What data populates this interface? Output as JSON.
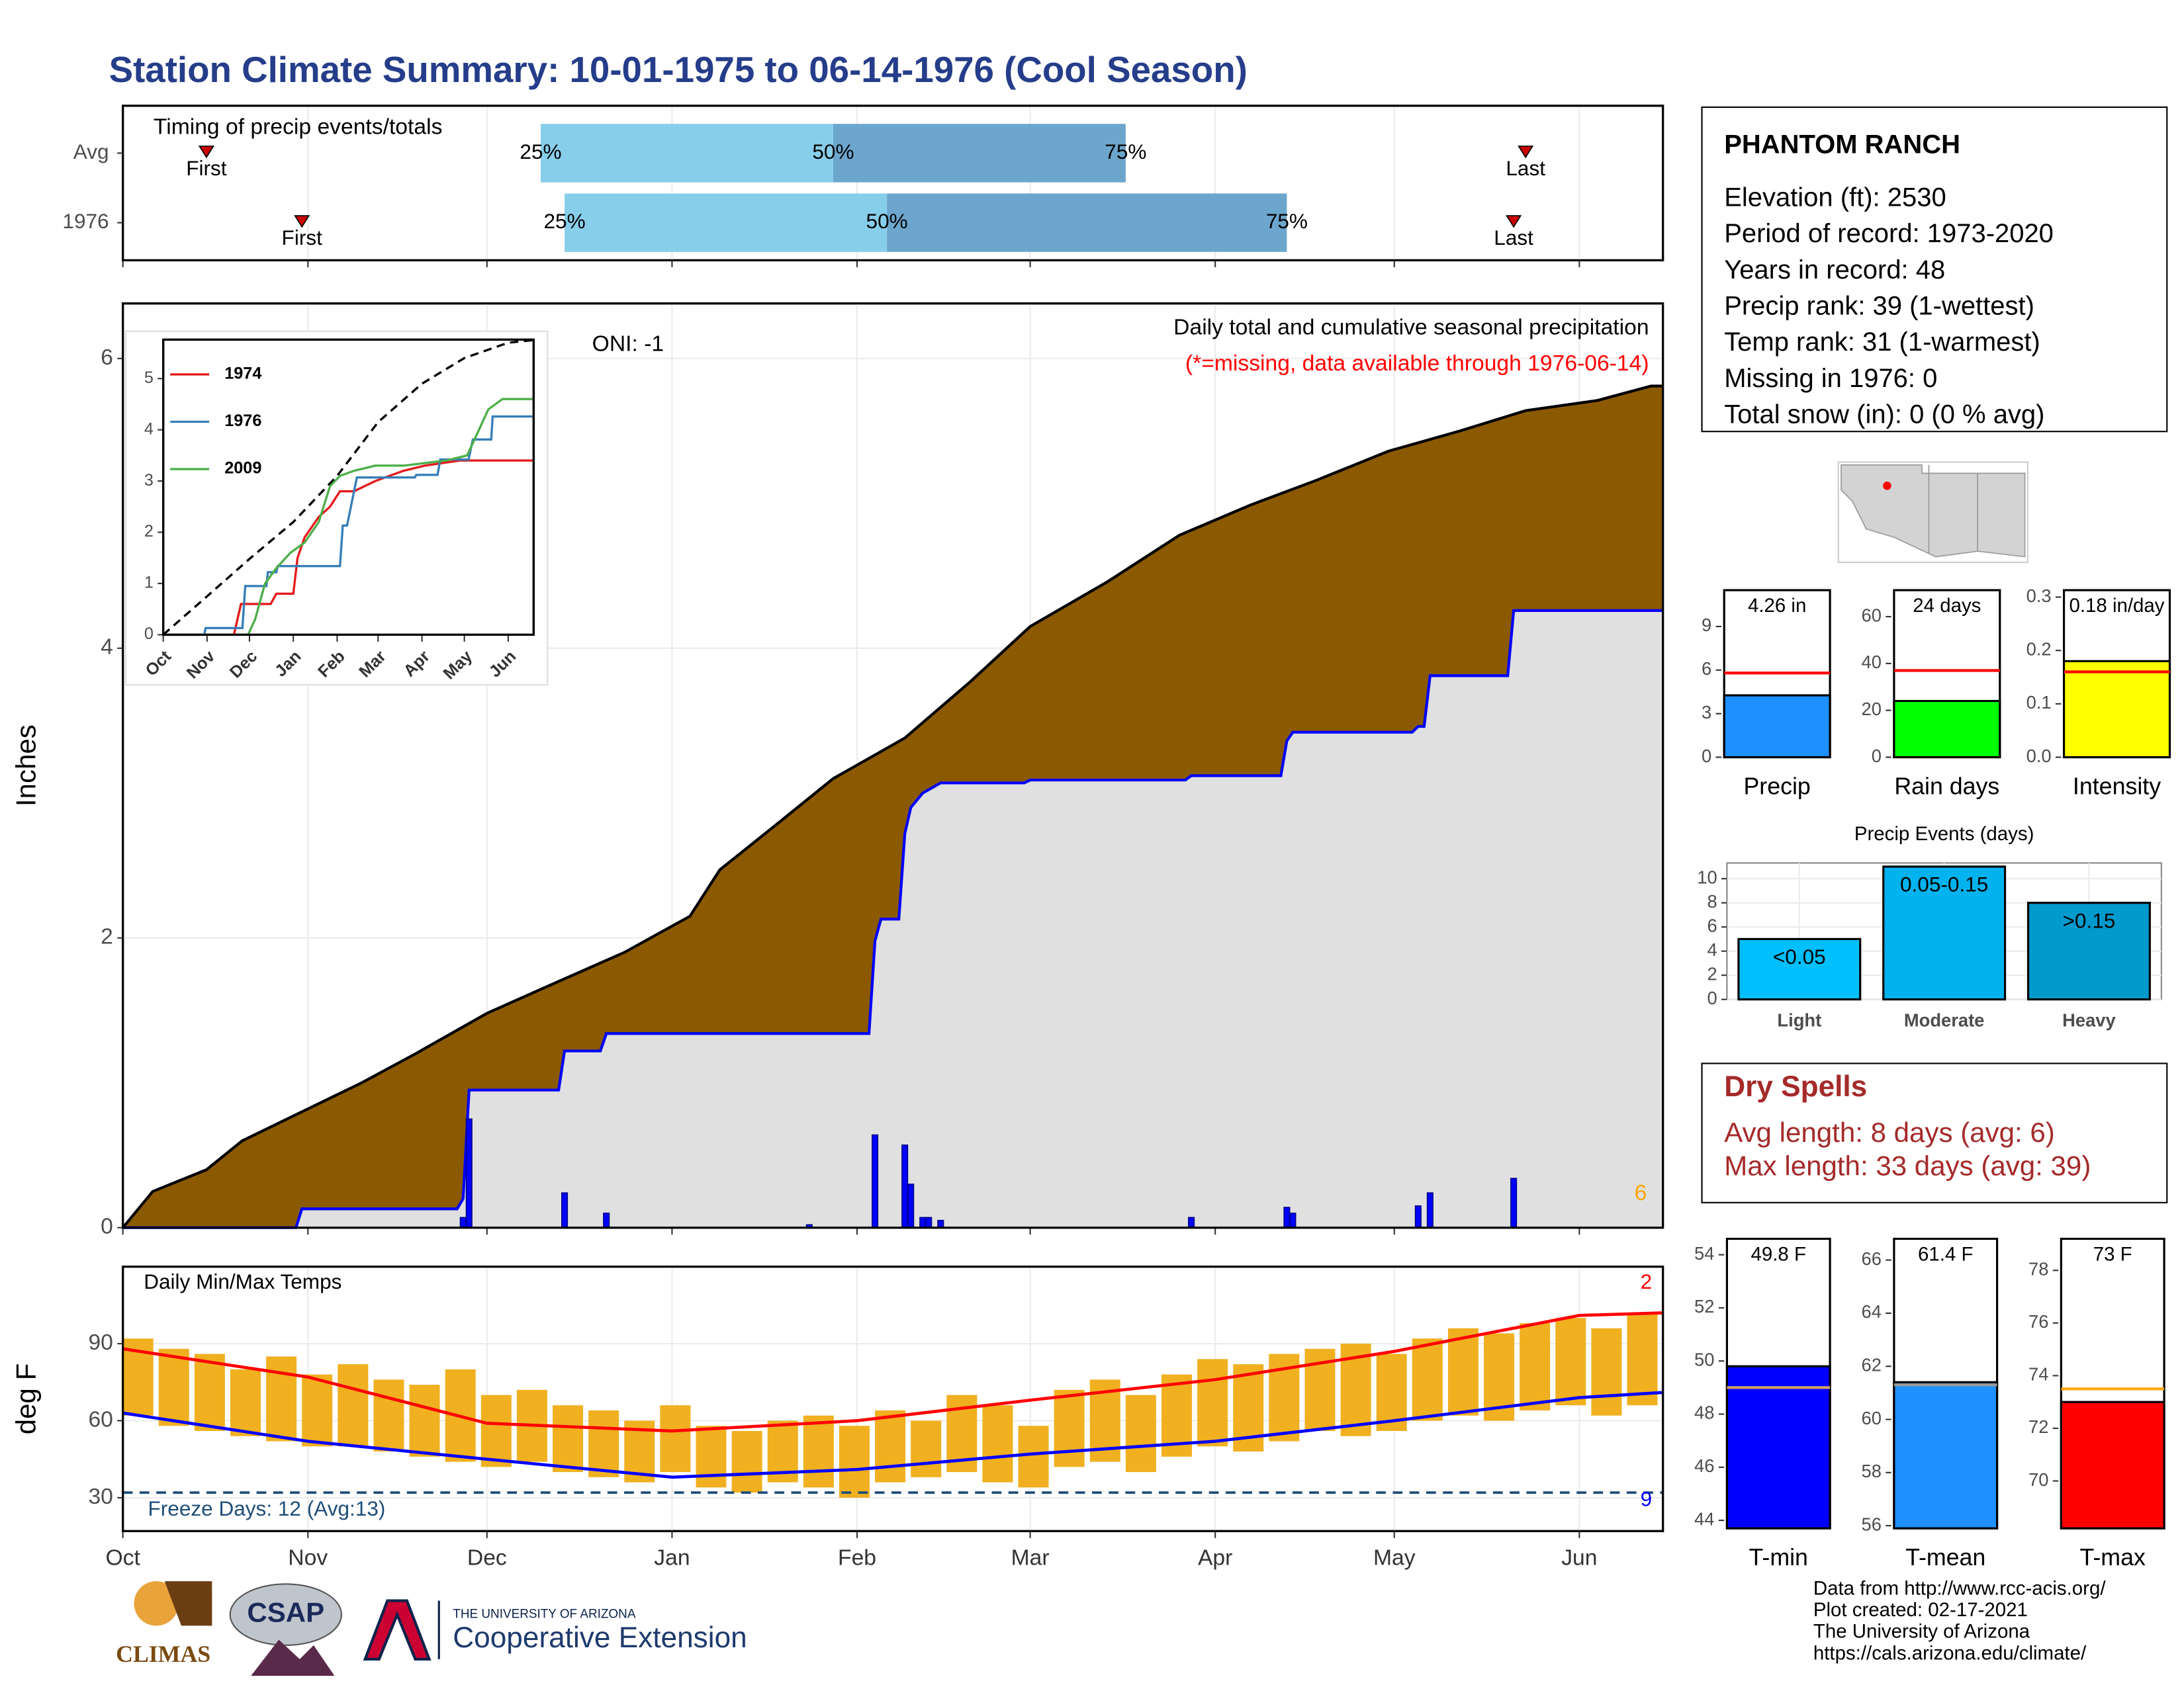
{
  "title": "Station Climate Summary: 10-01-1975 to 06-14-1976 (Cool Season)",
  "station": {
    "name": "PHANTOM RANCH",
    "lines": [
      "Elevation (ft): 2530",
      "Period of record: 1973-2020",
      "Years in record: 48",
      "Precip rank: 39 (1-wettest)",
      "Temp rank: 31 (1-warmest)",
      "Missing in 1976: 0",
      "Total snow (in): 0 (0 % avg)"
    ]
  },
  "dry_spells": {
    "title": "Dry Spells",
    "lines": [
      "Avg length: 8 days (avg: 6)",
      "Max length: 33 days (avg: 39)"
    ]
  },
  "credits": [
    "Data from http://www.rcc-acis.org/",
    "Plot created: 02-17-2021",
    "The University of Arizona",
    "https://cals.arizona.edu/climate/"
  ],
  "logos": [
    "CLIMAS",
    "CSAP",
    "THE UNIVERSITY OF ARIZONA",
    "Cooperative Extension"
  ],
  "chart_data": [
    {
      "type": "timeline",
      "title": "Timing of precip events/totals",
      "xlim": [
        0,
        258
      ],
      "xticks": [
        0,
        31,
        61,
        92,
        123,
        152,
        183,
        213,
        244
      ],
      "marker_labels": {
        "first": "First",
        "p25": "25%",
        "p50": "50%",
        "p75": "75%",
        "last": "Last"
      },
      "colors": {
        "early": "#87ceeb",
        "late": "#6ca6cd",
        "marker": "#cc0000"
      },
      "rows": [
        {
          "name": "Avg",
          "first": 14,
          "p25": 70,
          "p50": 119,
          "p75": 168,
          "last": 235
        },
        {
          "name": "1976",
          "first": 30,
          "p25": 74,
          "p50": 128,
          "p75": 195,
          "last": 233
        }
      ]
    },
    {
      "type": "cumulative",
      "title": "Daily total and cumulative seasonal precipitation",
      "subtitle": "(*=missing, data available through 1976-06-14)",
      "annotation": "ONI: -1",
      "count_label": 6,
      "ylabel": "Inches",
      "grid": true,
      "xlim": [
        0,
        258
      ],
      "xticks": [
        0,
        31,
        61,
        92,
        123,
        152,
        183,
        213,
        244
      ],
      "ylim": [
        0,
        6.38
      ],
      "yticks": [
        0,
        2,
        4,
        6
      ],
      "average_cumulative": {
        "color": "#8b5a00",
        "x": [
          0,
          5,
          14,
          20,
          28,
          40,
          49,
          61,
          73,
          84,
          95,
          100,
          110,
          119,
          131,
          142,
          152,
          165,
          177,
          189,
          200,
          212,
          224,
          235,
          247,
          256,
          258
        ],
        "values": [
          0,
          0.25,
          0.4,
          0.6,
          0.76,
          1.0,
          1.2,
          1.48,
          1.7,
          1.9,
          2.15,
          2.47,
          2.8,
          3.1,
          3.38,
          3.77,
          4.15,
          4.46,
          4.78,
          4.99,
          5.16,
          5.36,
          5.5,
          5.64,
          5.71,
          5.81,
          5.81
        ]
      },
      "cumulative": {
        "color": "#0000ff",
        "fill": "#e0e0e0",
        "x": [
          0,
          29,
          30,
          56,
          57,
          58,
          73,
          74,
          80,
          81,
          125,
          126,
          127,
          130,
          131,
          132,
          134,
          137,
          151,
          152,
          178,
          179,
          194,
          195,
          196,
          216,
          217,
          218,
          219,
          232,
          233,
          258
        ],
        "values": [
          0,
          0,
          0.13,
          0.13,
          0.2,
          0.95,
          0.95,
          1.22,
          1.22,
          1.34,
          1.34,
          1.98,
          2.13,
          2.13,
          2.72,
          2.9,
          3.0,
          3.07,
          3.07,
          3.09,
          3.09,
          3.12,
          3.12,
          3.36,
          3.42,
          3.42,
          3.46,
          3.46,
          3.81,
          3.81,
          4.26,
          4.26
        ]
      },
      "daily": {
        "color": "#0000ff",
        "x": [
          57,
          58,
          74,
          81,
          115,
          126,
          131,
          132,
          134,
          135,
          137,
          179,
          195,
          196,
          217,
          219,
          233
        ],
        "values": [
          0.07,
          0.75,
          0.24,
          0.1,
          0.02,
          0.64,
          0.57,
          0.3,
          0.07,
          0.07,
          0.05,
          0.07,
          0.14,
          0.1,
          0.15,
          0.24,
          0.34
        ]
      }
    },
    {
      "type": "line",
      "xlim": [
        0,
        262
      ],
      "xticks": [
        {
          "value": 0,
          "label": "Oct"
        },
        {
          "value": 31,
          "label": "Nov"
        },
        {
          "value": 61,
          "label": "Dec"
        },
        {
          "value": 92,
          "label": "Jan"
        },
        {
          "value": 123,
          "label": "Feb"
        },
        {
          "value": 152,
          "label": "Mar"
        },
        {
          "value": 183,
          "label": "Apr"
        },
        {
          "value": 213,
          "label": "May"
        },
        {
          "value": 244,
          "label": "Jun"
        }
      ],
      "ylim": [
        0,
        5.76
      ],
      "yticks": [
        0,
        1,
        2,
        3,
        4,
        5
      ],
      "series": [
        {
          "color": "#000000",
          "dash": true,
          "x": [
            0,
            31,
            61,
            92,
            123,
            152,
            183,
            213,
            244,
            262
          ],
          "values": [
            0,
            0.75,
            1.48,
            2.2,
            3.1,
            4.15,
            4.9,
            5.4,
            5.7,
            5.75
          ]
        },
        {
          "name": "1974",
          "color": "#e41a1c",
          "x": [
            0,
            50,
            55,
            76,
            80,
            92,
            95,
            100,
            110,
            118,
            125,
            135,
            150,
            160,
            170,
            185,
            210,
            262
          ],
          "values": [
            0,
            0,
            0.6,
            0.6,
            0.8,
            0.8,
            1.5,
            1.9,
            2.3,
            2.5,
            2.8,
            2.8,
            3.0,
            3.1,
            3.2,
            3.3,
            3.4,
            3.4
          ]
        },
        {
          "name": "1976",
          "color": "#377eb8",
          "x": [
            0,
            29,
            30,
            56,
            58,
            73,
            74,
            80,
            81,
            125,
            127,
            130,
            137,
            178,
            179,
            194,
            196,
            216,
            219,
            232,
            233,
            262
          ],
          "values": [
            0,
            0,
            0.13,
            0.13,
            0.95,
            0.95,
            1.22,
            1.22,
            1.34,
            1.34,
            2.13,
            2.13,
            3.07,
            3.07,
            3.12,
            3.12,
            3.42,
            3.42,
            3.81,
            3.81,
            4.26,
            4.26
          ]
        },
        {
          "name": "2009",
          "color": "#4daf4a",
          "x": [
            0,
            60,
            65,
            72,
            80,
            90,
            100,
            110,
            118,
            125,
            135,
            150,
            170,
            200,
            215,
            230,
            240,
            262
          ],
          "values": [
            0,
            0,
            0.3,
            1.0,
            1.3,
            1.6,
            1.8,
            2.2,
            2.9,
            3.1,
            3.2,
            3.3,
            3.3,
            3.4,
            3.5,
            4.4,
            4.6,
            4.6
          ]
        }
      ]
    },
    {
      "type": "range_bar",
      "title": "Daily Min/Max Temps",
      "ylabel": "deg F",
      "annotation": "Freeze Days: 12 (Avg:13)",
      "record_high_count": 2,
      "record_low_count": 9,
      "grid": true,
      "xlim": [
        0,
        258
      ],
      "xticks": [
        {
          "value": 0,
          "label": "Oct"
        },
        {
          "value": 31,
          "label": "Nov"
        },
        {
          "value": 61,
          "label": "Dec"
        },
        {
          "value": 92,
          "label": "Jan"
        },
        {
          "value": 123,
          "label": "Feb"
        },
        {
          "value": 152,
          "label": "Mar"
        },
        {
          "value": 183,
          "label": "Apr"
        },
        {
          "value": 213,
          "label": "May"
        },
        {
          "value": 244,
          "label": "Jun"
        }
      ],
      "ylim": [
        17,
        120
      ],
      "yticks": [
        30,
        60,
        90
      ],
      "bar_color": "#f0b020",
      "x": [
        0,
        6,
        12,
        18,
        24,
        30,
        36,
        42,
        48,
        54,
        60,
        66,
        72,
        78,
        84,
        90,
        96,
        102,
        108,
        114,
        120,
        126,
        132,
        138,
        144,
        150,
        156,
        162,
        168,
        174,
        180,
        186,
        192,
        198,
        204,
        210,
        216,
        222,
        228,
        234,
        240,
        246,
        252
      ],
      "max": [
        92,
        88,
        86,
        80,
        85,
        78,
        82,
        76,
        74,
        80,
        70,
        72,
        66,
        64,
        60,
        66,
        58,
        56,
        60,
        62,
        58,
        64,
        60,
        70,
        66,
        58,
        72,
        76,
        70,
        78,
        84,
        82,
        86,
        88,
        90,
        86,
        92,
        96,
        94,
        98,
        100,
        96,
        102
      ],
      "min": [
        62,
        58,
        56,
        54,
        52,
        50,
        50,
        48,
        46,
        44,
        42,
        44,
        40,
        38,
        36,
        40,
        34,
        32,
        36,
        34,
        30,
        36,
        38,
        40,
        36,
        34,
        42,
        44,
        40,
        46,
        50,
        48,
        52,
        56,
        54,
        56,
        60,
        62,
        60,
        64,
        66,
        62,
        66
      ],
      "normal_max": {
        "color": "#ff0000",
        "x": [
          0,
          31,
          61,
          92,
          123,
          152,
          183,
          213,
          244,
          258
        ],
        "values": [
          88,
          77,
          59,
          56,
          60,
          68,
          76,
          87,
          101,
          102
        ]
      },
      "normal_min": {
        "color": "#0000ff",
        "x": [
          0,
          31,
          61,
          92,
          123,
          152,
          183,
          213,
          244,
          258
        ],
        "values": [
          63,
          52,
          45,
          38,
          41,
          47,
          52,
          60,
          69,
          71
        ]
      },
      "freeze_line": 32,
      "freeze_color": "#1f4e79"
    },
    {
      "type": "bar",
      "categories": [
        "Precip"
      ],
      "values": [
        4.26
      ],
      "value_labels": [
        "4.26 in"
      ],
      "average": 5.8,
      "average_color": "#ff0000",
      "color": "#1e90ff",
      "ylim": [
        0,
        11.5
      ],
      "yticks": [
        0,
        3,
        6,
        9
      ]
    },
    {
      "type": "bar",
      "categories": [
        "Rain days"
      ],
      "values": [
        24
      ],
      "value_labels": [
        "24 days"
      ],
      "average": 37,
      "average_color": "#ff0000",
      "color": "#00ff00",
      "ylim": [
        0,
        71.3
      ],
      "yticks": [
        0,
        20,
        40,
        60
      ]
    },
    {
      "type": "bar",
      "categories": [
        "Intensity"
      ],
      "values": [
        0.18
      ],
      "value_labels": [
        "0.18 in/day"
      ],
      "average": 0.16,
      "average_color": "#ff0000",
      "color": "#ffff00",
      "ylim": [
        0,
        0.313
      ],
      "yticks": [
        {
          "value": 0,
          "label": "0.0"
        },
        0.1,
        0.2,
        0.3
      ]
    },
    {
      "type": "bar",
      "title": "Precip Events (days)",
      "categories": [
        "Light",
        "Moderate",
        "Heavy"
      ],
      "values": [
        5,
        11,
        8
      ],
      "bar_labels": [
        "<0.05",
        "0.05-0.15",
        ">0.15"
      ],
      "colors": [
        "#00bfff",
        "#00b2ee",
        "#009acd"
      ],
      "ylim": [
        0,
        11.3
      ],
      "yticks": [
        0,
        2,
        4,
        6,
        8,
        10
      ],
      "grid": true
    },
    {
      "type": "bar",
      "categories": [
        "T-min"
      ],
      "values": [
        49.8
      ],
      "value_labels": [
        "49.8 F"
      ],
      "average": 49,
      "average_color": "#d2a060",
      "color": "#0000ff",
      "ylim": [
        43.7,
        54.6
      ],
      "yticks": [
        44,
        46,
        48,
        50,
        52,
        54
      ]
    },
    {
      "type": "bar",
      "categories": [
        "T-mean"
      ],
      "values": [
        61.4
      ],
      "value_labels": [
        "61.4 F"
      ],
      "average": 61.3,
      "average_color": "#999999",
      "color": "#1e90ff",
      "ylim": [
        55.9,
        66.8
      ],
      "yticks": [
        56,
        58,
        60,
        62,
        64,
        66
      ]
    },
    {
      "type": "bar",
      "categories": [
        "T-max"
      ],
      "values": [
        73
      ],
      "value_labels": [
        "73 F"
      ],
      "average": 73.5,
      "average_color": "#ffa500",
      "color": "#ff0000",
      "ylim": [
        68.2,
        79.2
      ],
      "yticks": [
        70,
        72,
        74,
        76,
        78
      ]
    }
  ]
}
